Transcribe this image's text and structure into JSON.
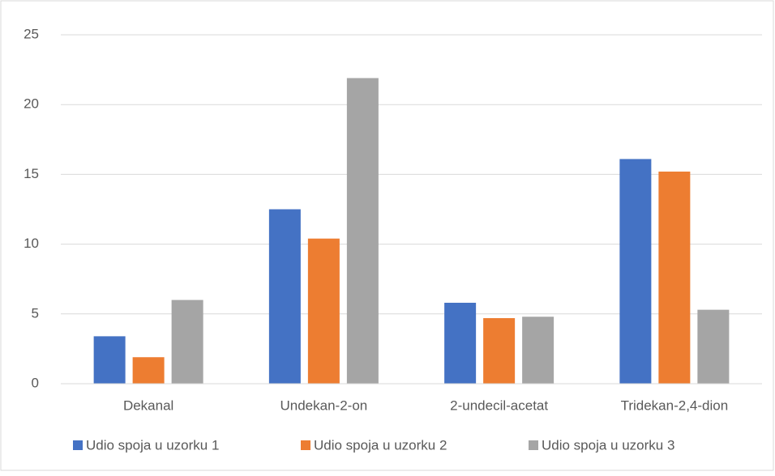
{
  "chart_data": {
    "type": "bar",
    "categories": [
      "Dekanal",
      "Undekan-2-on",
      "2-undecil-acetat",
      "Tridekan-2,4-dion"
    ],
    "series": [
      {
        "name": "Udio spoja u uzorku 1",
        "color": "#4472c4",
        "values": [
          3.4,
          12.5,
          5.8,
          16.1
        ]
      },
      {
        "name": "Udio spoja u uzorku 2",
        "color": "#ed7d31",
        "values": [
          1.9,
          10.4,
          4.7,
          15.2
        ]
      },
      {
        "name": "Udio spoja u uzorku 3",
        "color": "#a5a5a5",
        "values": [
          6.0,
          21.9,
          4.8,
          5.3
        ]
      }
    ],
    "ylim": [
      0,
      25
    ],
    "yticks": [
      0,
      5,
      10,
      15,
      20,
      25
    ],
    "grid": true,
    "legend": "bottom"
  }
}
